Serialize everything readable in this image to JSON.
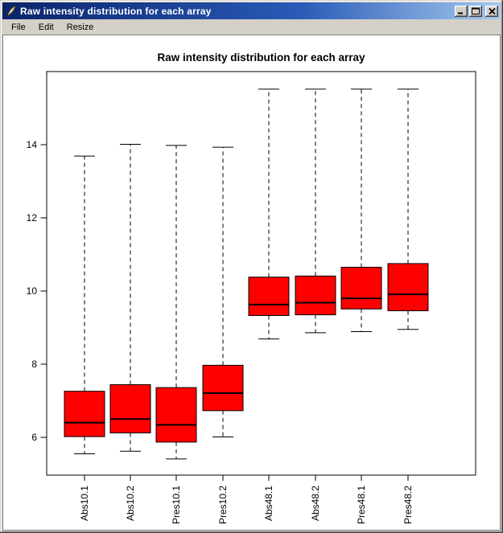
{
  "window": {
    "title": "Raw intensity distribution for each array"
  },
  "icons": {
    "window_icon": "feather-quill",
    "minimize": "underscore-bar",
    "maximize": "square-outline",
    "close": "x-cross"
  },
  "menu": {
    "items": [
      "File",
      "Edit",
      "Resize"
    ]
  },
  "chart_data": {
    "type": "boxplot",
    "title": "Raw intensity distribution for each array",
    "xlabel": "",
    "ylabel": "",
    "categories": [
      "Abs10.1",
      "Abs10.2",
      "Pres10.1",
      "Pres10.2",
      "Abs48.1",
      "Abs48.2",
      "Pres48.1",
      "Pres48.2"
    ],
    "boxes": [
      {
        "low": 5.55,
        "q1": 6.02,
        "median": 6.4,
        "q3": 7.26,
        "high": 13.69
      },
      {
        "low": 5.62,
        "q1": 6.12,
        "median": 6.5,
        "q3": 7.44,
        "high": 14.01
      },
      {
        "low": 5.41,
        "q1": 5.87,
        "median": 6.34,
        "q3": 7.36,
        "high": 13.98
      },
      {
        "low": 6.01,
        "q1": 6.73,
        "median": 7.21,
        "q3": 7.97,
        "high": 13.93
      },
      {
        "low": 8.69,
        "q1": 9.33,
        "median": 9.63,
        "q3": 10.38,
        "high": 15.52
      },
      {
        "low": 8.86,
        "q1": 9.35,
        "median": 9.68,
        "q3": 10.41,
        "high": 15.52
      },
      {
        "low": 8.89,
        "q1": 9.51,
        "median": 9.8,
        "q3": 10.65,
        "high": 15.52
      },
      {
        "low": 8.95,
        "q1": 9.46,
        "median": 9.91,
        "q3": 10.75,
        "high": 15.52
      }
    ],
    "y_axis": {
      "ticks": [
        6,
        8,
        10,
        12,
        14
      ],
      "range": [
        4.97,
        16.0
      ]
    },
    "grid": false,
    "legend": "none",
    "box_fill": "#ff0000",
    "line_color": "#000000",
    "whisker_style": "dashed"
  }
}
